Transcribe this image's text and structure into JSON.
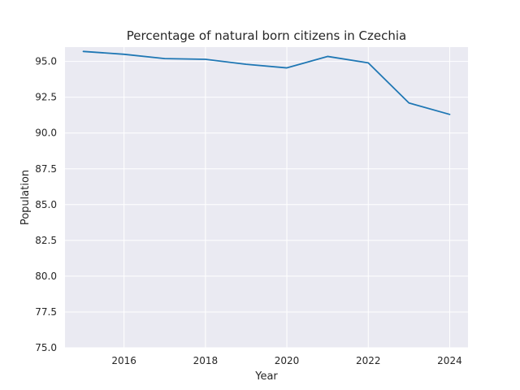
{
  "chart_data": {
    "type": "line",
    "title": "Percentage of natural born citizens in Czechia",
    "xlabel": "Year",
    "ylabel": "Population",
    "x": [
      2015,
      2016,
      2017,
      2018,
      2019,
      2020,
      2021,
      2022,
      2023,
      2024
    ],
    "series": [
      {
        "values": [
          95.7,
          95.5,
          95.2,
          95.15,
          94.8,
          94.55,
          95.35,
          94.9,
          92.1,
          91.3
        ],
        "color": "#1f77b4"
      }
    ],
    "xlim": [
      2014.55,
      2024.45
    ],
    "ylim": [
      75.0,
      96.0
    ],
    "xticks": [
      2016,
      2018,
      2020,
      2022,
      2024
    ],
    "yticks": [
      75.0,
      77.5,
      80.0,
      82.5,
      85.0,
      87.5,
      90.0,
      92.5,
      95.0
    ],
    "xtick_labels": [
      "2016",
      "2018",
      "2020",
      "2022",
      "2024"
    ],
    "ytick_labels": [
      "75.0",
      "77.5",
      "80.0",
      "82.5",
      "85.0",
      "87.5",
      "90.0",
      "92.5",
      "95.0"
    ],
    "grid": true,
    "background_color": "#eaeaf2",
    "grid_color": "#ffffff"
  }
}
